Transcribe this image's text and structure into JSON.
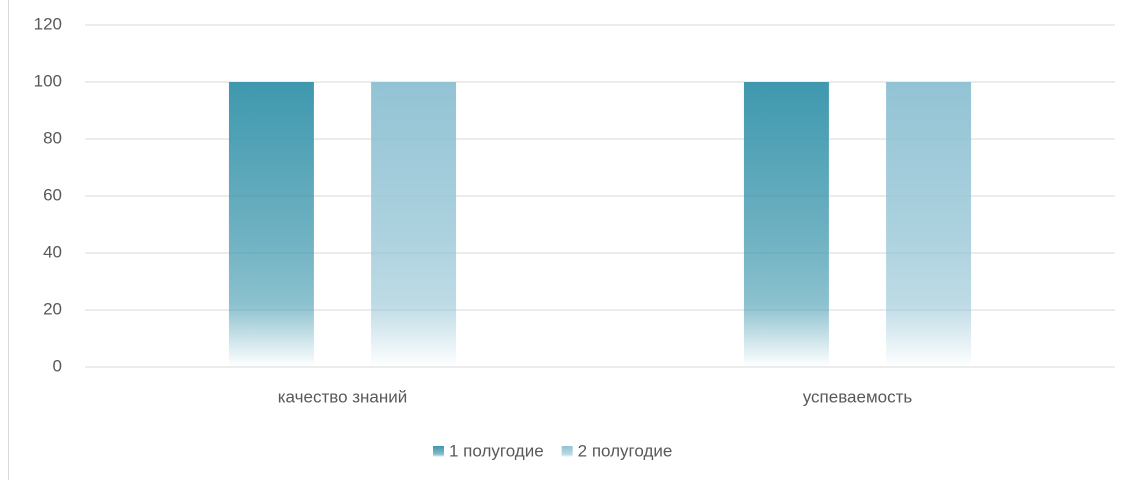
{
  "chart_data": {
    "type": "bar",
    "categories": [
      "качество знаний",
      "успеваемость"
    ],
    "series": [
      {
        "name": "1 полугодие",
        "color": "#3f98ae",
        "values": [
          100,
          100
        ]
      },
      {
        "name": "2 полугодие",
        "color": "#92c3d4",
        "values": [
          100,
          100
        ]
      }
    ],
    "ylim": [
      0,
      120
    ],
    "yticks": [
      0,
      20,
      40,
      60,
      80,
      100,
      120
    ],
    "grid": true,
    "legend": "bottom"
  }
}
